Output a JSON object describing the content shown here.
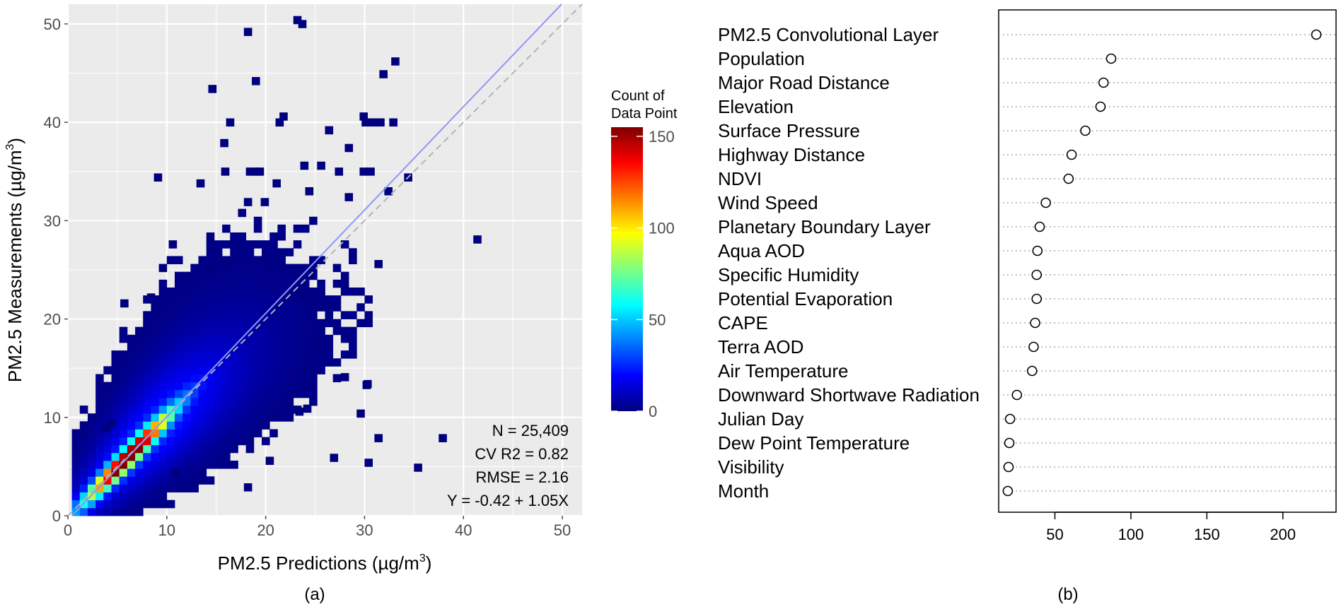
{
  "chart_data": [
    {
      "type": "heatmap",
      "panel_label": "(a)",
      "xlabel": {
        "main": "PM2.5 Predictions (",
        "mu": "µ",
        "unit": "g/m",
        "sup": "3",
        "close": ")"
      },
      "ylabel": {
        "main": "PM2.5 Measurements (",
        "mu": "µ",
        "unit": "g/m",
        "sup": "3",
        "close": ")"
      },
      "xlim": [
        0,
        52
      ],
      "ylim": [
        0,
        52
      ],
      "xticks": [
        0,
        10,
        20,
        30,
        40,
        50
      ],
      "yticks": [
        0,
        10,
        20,
        30,
        40,
        50
      ],
      "grid": true,
      "bin_size": 0.8,
      "legend": {
        "title": [
          "Count of",
          "Data Point"
        ],
        "range": [
          0,
          155
        ],
        "ticks": [
          0,
          50,
          100,
          150
        ],
        "colors": [
          "#00007F",
          "#0000FF",
          "#007FFF",
          "#00FFFF",
          "#7FFF7F",
          "#FFFF00",
          "#FF7F00",
          "#FF0000",
          "#7F0000"
        ]
      },
      "stats": [
        "N = 25,409",
        "CV R2 = 0.82",
        "RMSE = 2.16",
        "Y = -0.42 + 1.05X"
      ],
      "fit_line": {
        "intercept": -0.42,
        "slope": 1.05,
        "color": "#8f97f5"
      },
      "identity_line": {
        "intercept": 0,
        "slope": 1,
        "color": "#b3b3b3",
        "dash": true
      },
      "outlier_points": [
        [
          17.8,
          48.8
        ],
        [
          22.8,
          50.0
        ],
        [
          23.3,
          49.6
        ],
        [
          14.2,
          43.0
        ],
        [
          18.6,
          43.8
        ],
        [
          32.7,
          45.8
        ],
        [
          31.5,
          44.5
        ],
        [
          21.0,
          39.6
        ],
        [
          16.0,
          39.6
        ],
        [
          21.4,
          40.2
        ],
        [
          29.5,
          40.2
        ],
        [
          29.7,
          39.6
        ],
        [
          30.5,
          39.6
        ],
        [
          31.2,
          39.6
        ],
        [
          32.5,
          39.6
        ],
        [
          26.0,
          38.8
        ],
        [
          15.4,
          37.5
        ],
        [
          28.0,
          37.0
        ],
        [
          23.5,
          35.2
        ],
        [
          25.2,
          35.2
        ],
        [
          27.0,
          34.6
        ],
        [
          18.0,
          34.6
        ],
        [
          18.6,
          34.6
        ],
        [
          19.0,
          34.6
        ],
        [
          15.5,
          34.6
        ],
        [
          29.5,
          34.6
        ],
        [
          30.2,
          34.6
        ],
        [
          8.7,
          34.0
        ],
        [
          13.0,
          33.4
        ],
        [
          20.7,
          33.4
        ],
        [
          34.0,
          34.0
        ],
        [
          32.0,
          32.6
        ],
        [
          24.0,
          32.6
        ],
        [
          28.0,
          32.0
        ],
        [
          17.8,
          31.5
        ],
        [
          19.5,
          31.5
        ],
        [
          14.0,
          28.0
        ],
        [
          41.0,
          27.7
        ],
        [
          10.2,
          27.2
        ],
        [
          31.0,
          25.2
        ],
        [
          9.2,
          24.8
        ],
        [
          14.0,
          24.8
        ],
        [
          23.0,
          22.0
        ],
        [
          23.5,
          21.9
        ],
        [
          8.0,
          21.8
        ],
        [
          5.3,
          21.2
        ],
        [
          27.6,
          13.7
        ],
        [
          29.9,
          13.0
        ],
        [
          29.8,
          12.9
        ],
        [
          37.5,
          7.5
        ],
        [
          29.2,
          10.0
        ],
        [
          23.8,
          10.5
        ],
        [
          23.0,
          10.2
        ],
        [
          20.0,
          5.2
        ],
        [
          17.8,
          2.5
        ],
        [
          26.5,
          5.5
        ],
        [
          10.5,
          4.0
        ],
        [
          30.0,
          5.0
        ],
        [
          4.0,
          9.0
        ],
        [
          3.5,
          8.5
        ],
        [
          35.0,
          4.5
        ],
        [
          31.0,
          7.5
        ]
      ]
    },
    {
      "type": "scatter",
      "panel_label": "(b)",
      "categories": [
        "PM2.5 Convolutional Layer",
        "Population",
        "Major Road Distance",
        "Elevation",
        "Surface Pressure",
        "Highway Distance",
        "NDVI",
        "Wind Speed",
        "Planetary Boundary Layer",
        "Aqua AOD",
        "Specific Humidity",
        "Potential Evaporation",
        "CAPE",
        "Terra AOD",
        "Air Temperature",
        "Downward Shortwave Radiation",
        "Julian Day",
        "Dew Point Temperature",
        "Visibility",
        "Month"
      ],
      "values": [
        222,
        87,
        82,
        80,
        70,
        61,
        59,
        44,
        40,
        38.5,
        38,
        38,
        37,
        36,
        35,
        25,
        20.5,
        20,
        19.5,
        19
      ],
      "xlim": [
        13,
        235
      ],
      "xticks": [
        50,
        100,
        150,
        200
      ],
      "grid": "horizontal-dotted",
      "legend": "none"
    }
  ]
}
